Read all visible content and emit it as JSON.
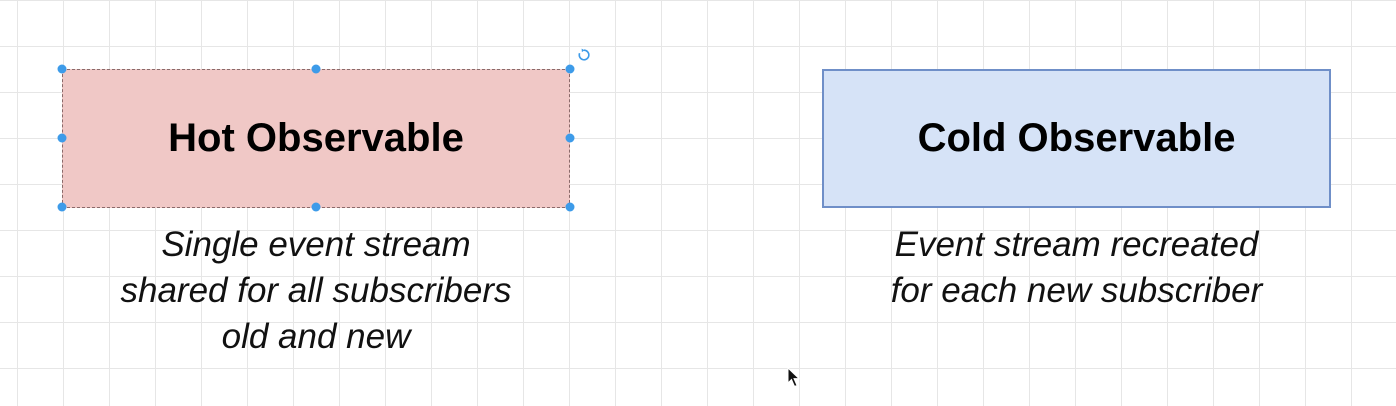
{
  "diagram": {
    "hot": {
      "title": "Hot Observable",
      "caption": [
        "Single event stream",
        "shared for all subscribers",
        "old and new"
      ],
      "fill": "#f0c8c6",
      "selected": true
    },
    "cold": {
      "title": "Cold Observable",
      "caption": [
        "Event stream recreated",
        "for each new subscriber"
      ],
      "fill": "#d6e3f7",
      "stroke": "#6f8fc8"
    },
    "colors": {
      "selection_handle": "#3d9be9",
      "grid": "#e6e6e6",
      "background": "#ffffff"
    },
    "icons": [
      "rotate-handle-icon",
      "mouse-cursor-icon"
    ]
  }
}
